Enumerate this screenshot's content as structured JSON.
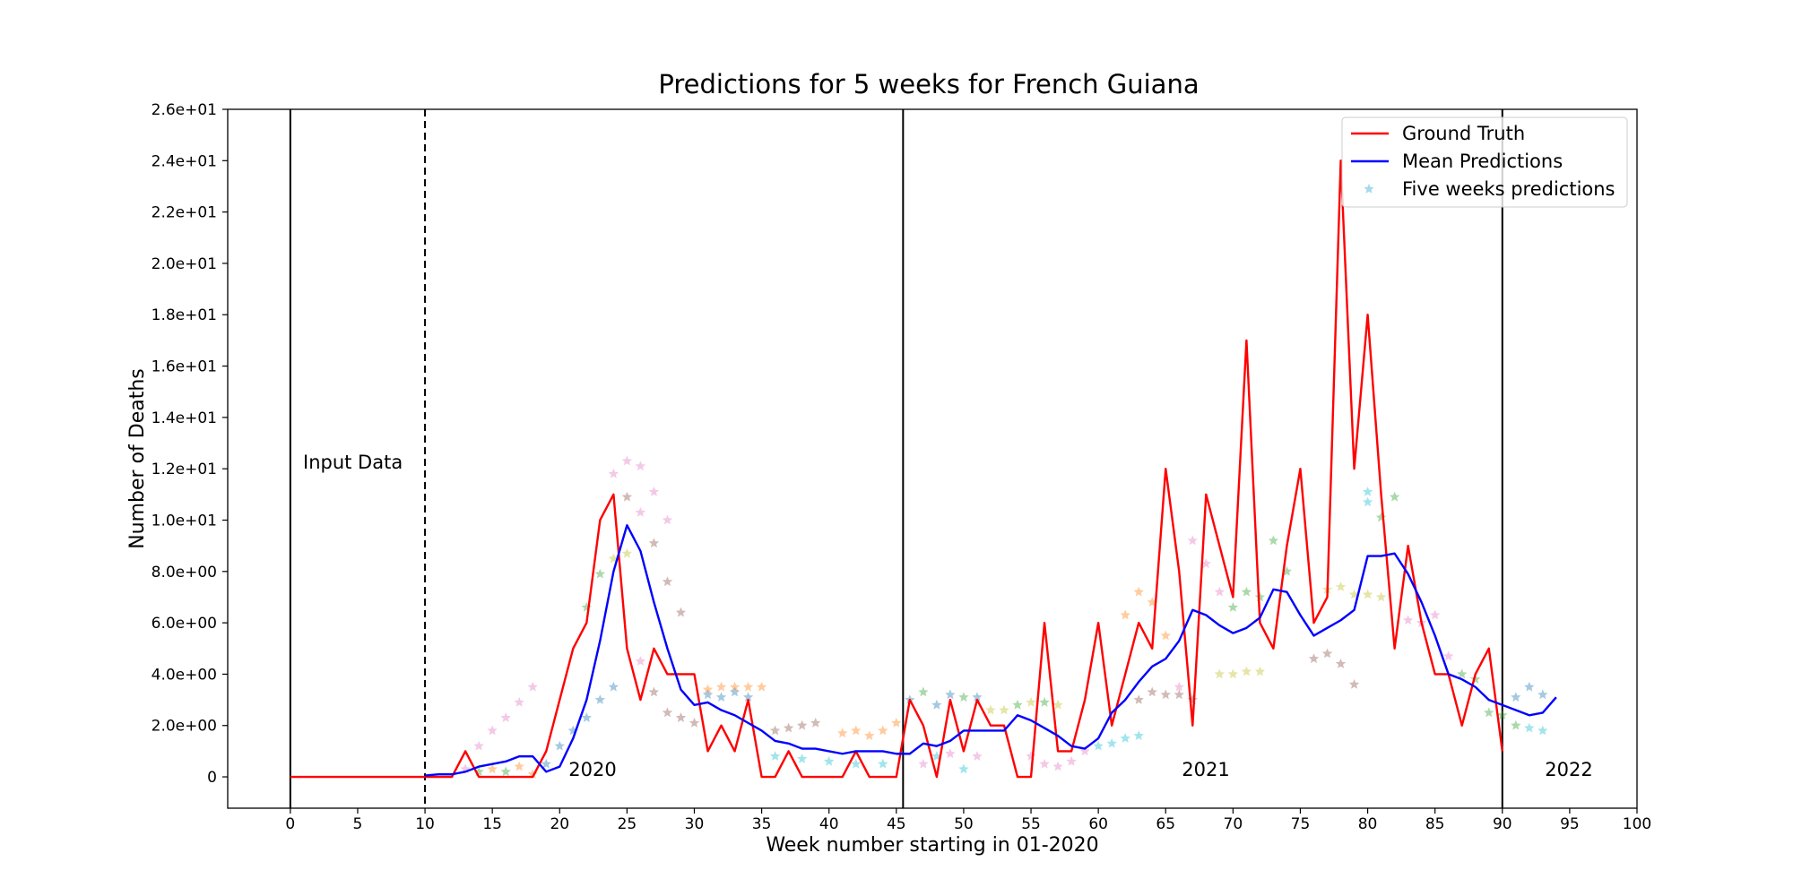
{
  "chart_data": {
    "type": "line",
    "title": "Predictions for 5 weeks for French Guiana",
    "xlabel": "Week number starting in 01-2020",
    "ylabel": "Number of Deaths",
    "xlim": [
      -4.65,
      100
    ],
    "ylim": [
      -1.22,
      26
    ],
    "xticks": [
      0,
      5,
      10,
      15,
      20,
      25,
      30,
      35,
      40,
      45,
      50,
      55,
      60,
      65,
      70,
      75,
      80,
      85,
      90,
      95,
      100
    ],
    "yticks": [
      0,
      {
        "value": 2,
        "label": "2.0e+00"
      },
      {
        "value": 4,
        "label": "4.0e+00"
      },
      {
        "value": 6,
        "label": "6.0e+00"
      },
      {
        "value": 8,
        "label": "8.0e+00"
      },
      {
        "value": 10,
        "label": "1.0e+01"
      },
      {
        "value": 12,
        "label": "1.2e+01"
      },
      {
        "value": 14,
        "label": "1.4e+01"
      },
      {
        "value": 16,
        "label": "1.6e+01"
      },
      {
        "value": 18,
        "label": "1.8e+01"
      },
      {
        "value": 20,
        "label": "2.0e+01"
      },
      {
        "value": 22,
        "label": "2.2e+01"
      },
      {
        "value": 24,
        "label": "2.4e+01"
      },
      {
        "value": 26,
        "label": "2.6e+01"
      }
    ],
    "grid": false,
    "legend": "upper right",
    "vlines": [
      {
        "x": 0,
        "style": "solid"
      },
      {
        "x": 10,
        "style": "dashed"
      },
      {
        "x": 45.5,
        "style": "solid"
      },
      {
        "x": 90,
        "style": "solid"
      }
    ],
    "annotations": [
      "Input Data",
      "2020",
      "2021",
      "2022"
    ],
    "series": [
      {
        "name": "Ground Truth",
        "color": "#ff0000",
        "kind": "line",
        "x": [
          0,
          1,
          2,
          3,
          4,
          5,
          6,
          7,
          8,
          9,
          10,
          11,
          12,
          13,
          14,
          15,
          16,
          17,
          18,
          19,
          20,
          21,
          22,
          23,
          24,
          25,
          26,
          27,
          28,
          29,
          30,
          31,
          32,
          33,
          34,
          35,
          36,
          37,
          38,
          39,
          40,
          41,
          42,
          43,
          44,
          45,
          46,
          47,
          48,
          49,
          50,
          51,
          52,
          53,
          54,
          55,
          56,
          57,
          58,
          59,
          60,
          61,
          62,
          63,
          64,
          65,
          66,
          67,
          68,
          69,
          70,
          71,
          72,
          73,
          74,
          75,
          76,
          77,
          78,
          79,
          80,
          81,
          82,
          83,
          84,
          85,
          86,
          87,
          88,
          89,
          90
        ],
        "values": [
          0,
          0,
          0,
          0,
          0,
          0,
          0,
          0,
          0,
          0,
          0,
          0,
          0,
          1,
          0,
          0,
          0,
          0,
          0,
          1,
          3,
          5,
          6,
          10,
          11,
          5,
          3,
          5,
          4,
          4,
          4,
          1,
          2,
          1,
          3,
          0,
          0,
          1,
          0,
          0,
          0,
          0,
          1,
          0,
          0,
          0,
          3,
          2,
          0,
          3,
          1,
          3,
          2,
          2,
          0,
          0,
          6,
          1,
          1,
          3,
          6,
          2,
          4,
          6,
          5,
          12,
          8,
          2,
          11,
          9,
          7,
          17,
          6,
          5,
          9,
          12,
          6,
          7,
          24,
          12,
          18,
          11,
          5,
          9,
          6,
          4,
          4,
          2,
          4,
          5,
          1
        ]
      },
      {
        "name": "Mean Predictions",
        "color": "#0000ff",
        "kind": "line",
        "x": [
          10,
          11,
          12,
          13,
          14,
          15,
          16,
          17,
          18,
          19,
          20,
          21,
          22,
          23,
          24,
          25,
          26,
          27,
          28,
          29,
          30,
          31,
          32,
          33,
          34,
          35,
          36,
          37,
          38,
          39,
          40,
          41,
          42,
          43,
          44,
          45,
          46,
          47,
          48,
          49,
          50,
          51,
          52,
          53,
          54,
          55,
          56,
          57,
          58,
          59,
          60,
          61,
          62,
          63,
          64,
          65,
          66,
          67,
          68,
          69,
          70,
          71,
          72,
          73,
          74,
          75,
          76,
          77,
          78,
          79,
          80,
          81,
          82,
          83,
          84,
          85,
          86,
          87,
          88,
          89,
          90,
          91,
          92,
          93,
          94
        ],
        "values": [
          0.05,
          0.1,
          0.1,
          0.2,
          0.4,
          0.5,
          0.6,
          0.8,
          0.8,
          0.2,
          0.4,
          1.5,
          3,
          5.3,
          8,
          9.8,
          8.8,
          6.8,
          5,
          3.4,
          2.8,
          2.9,
          2.6,
          2.4,
          2.1,
          1.8,
          1.4,
          1.3,
          1.1,
          1.1,
          1,
          0.9,
          1,
          1,
          1,
          0.9,
          0.9,
          1.3,
          1.2,
          1.4,
          1.8,
          1.8,
          1.8,
          1.8,
          2.4,
          2.2,
          1.9,
          1.6,
          1.2,
          1.1,
          1.5,
          2.5,
          3,
          3.7,
          4.3,
          4.6,
          5.3,
          6.5,
          6.3,
          5.9,
          5.6,
          5.8,
          6.2,
          7.3,
          7.2,
          6.3,
          5.5,
          5.8,
          6.1,
          6.5,
          8.6,
          8.6,
          8.7,
          7.9,
          6.8,
          5.5,
          4,
          3.8,
          3.5,
          3,
          2.8,
          2.6,
          2.4,
          2.5,
          3.1
        ]
      },
      {
        "name": "Five weeks predictions",
        "color": "#4fb3d9",
        "kind": "scatter",
        "x": [
          13,
          14,
          15,
          16,
          17,
          18,
          14,
          15,
          16,
          17,
          18,
          19,
          20,
          21,
          22,
          23,
          24,
          22,
          23,
          24,
          25,
          24,
          25,
          26,
          27,
          28,
          29,
          25,
          26,
          27,
          28,
          26,
          27,
          28,
          29,
          30,
          31,
          32,
          33,
          34,
          35,
          31,
          32,
          33,
          34,
          36,
          37,
          38,
          39,
          36,
          38,
          40,
          42,
          44,
          41,
          42,
          43,
          44,
          45,
          46,
          47,
          48,
          49,
          50,
          51,
          47,
          48,
          49,
          50,
          51,
          52,
          53,
          54,
          55,
          56,
          57,
          55,
          56,
          57,
          58,
          59,
          60,
          61,
          62,
          63,
          62,
          63,
          64,
          65,
          63,
          64,
          65,
          66,
          67,
          66,
          67,
          68,
          69,
          69,
          70,
          71,
          72,
          70,
          71,
          72,
          73,
          74,
          76,
          77,
          78,
          79,
          77,
          78,
          79,
          80,
          81,
          80,
          80,
          81,
          82,
          83,
          84,
          85,
          86,
          87,
          88,
          89,
          90,
          91,
          92,
          93,
          91,
          92,
          93
        ],
        "values": [
          0.3,
          1.2,
          1.8,
          2.3,
          2.9,
          3.5,
          0.2,
          0.3,
          0.2,
          0.4,
          0.1,
          0.5,
          1.2,
          1.8,
          2.3,
          3,
          3.5,
          6.6,
          7.9,
          8.5,
          8.7,
          11.8,
          12.3,
          12.1,
          11.1,
          10,
          6.4,
          10.9,
          10.3,
          9.1,
          7.6,
          4.5,
          3.3,
          2.5,
          2.3,
          2.1,
          3.4,
          3.5,
          3.5,
          3.5,
          3.5,
          3.2,
          3.1,
          3.3,
          3.1,
          1.8,
          1.9,
          2,
          2.1,
          0.8,
          0.7,
          0.6,
          0.5,
          0.5,
          1.7,
          1.8,
          1.6,
          1.8,
          2.1,
          3,
          3.3,
          2.8,
          3.2,
          3.1,
          3.1,
          0.5,
          0.8,
          0.9,
          0.3,
          0.8,
          2.6,
          2.6,
          2.8,
          2.9,
          2.9,
          2.8,
          0.8,
          0.5,
          0.4,
          0.6,
          1,
          1.2,
          1.3,
          1.5,
          1.6,
          6.3,
          7.2,
          6.8,
          5.5,
          3,
          3.3,
          3.2,
          3.2,
          3,
          3.5,
          9.2,
          8.3,
          7.2,
          4,
          4,
          4.1,
          4.1,
          6.6,
          7.2,
          7,
          9.2,
          8,
          4.6,
          4.8,
          4.4,
          3.6,
          7.3,
          7.4,
          7.1,
          7.1,
          7,
          11.1,
          10.7,
          10.1,
          10.9,
          6.1,
          6,
          6.3,
          4.7,
          4,
          3.8,
          2.5,
          2.4,
          2,
          1.9,
          1.8,
          3.1,
          3.5,
          3.2
        ],
        "point_colors": [
          "#e377c2",
          "#e377c2",
          "#e377c2",
          "#e377c2",
          "#e377c2",
          "#e377c2",
          "#2ca02c",
          "#ff7f0e",
          "#2ca02c",
          "#ff7f0e",
          "#ff7f0e",
          "#1f77b4",
          "#1f77b4",
          "#1f77b4",
          "#1f77b4",
          "#1f77b4",
          "#1f77b4",
          "#2ca02c",
          "#2ca02c",
          "#bcbd22",
          "#bcbd22",
          "#e377c2",
          "#e377c2",
          "#e377c2",
          "#e377c2",
          "#e377c2",
          "#8c564b",
          "#8c564b",
          "#e377c2",
          "#8c564b",
          "#8c564b",
          "#e377c2",
          "#8c564b",
          "#8c564b",
          "#8c564b",
          "#8c564b",
          "#ff7f0e",
          "#ff7f0e",
          "#ff7f0e",
          "#ff7f0e",
          "#ff7f0e",
          "#1f77b4",
          "#1f77b4",
          "#1f77b4",
          "#1f77b4",
          "#8c564b",
          "#8c564b",
          "#8c564b",
          "#8c564b",
          "#17becf",
          "#17becf",
          "#17becf",
          "#17becf",
          "#17becf",
          "#ff7f0e",
          "#ff7f0e",
          "#ff7f0e",
          "#ff7f0e",
          "#ff7f0e",
          "#1f77b4",
          "#2ca02c",
          "#1f77b4",
          "#1f77b4",
          "#2ca02c",
          "#1f77b4",
          "#e377c2",
          "#17becf",
          "#e377c2",
          "#17becf",
          "#e377c2",
          "#bcbd22",
          "#bcbd22",
          "#2ca02c",
          "#bcbd22",
          "#2ca02c",
          "#bcbd22",
          "#e377c2",
          "#e377c2",
          "#e377c2",
          "#e377c2",
          "#e377c2",
          "#17becf",
          "#17becf",
          "#17becf",
          "#17becf",
          "#ff7f0e",
          "#ff7f0e",
          "#ff7f0e",
          "#ff7f0e",
          "#8c564b",
          "#8c564b",
          "#8c564b",
          "#8c564b",
          "#8c564b",
          "#e377c2",
          "#e377c2",
          "#e377c2",
          "#e377c2",
          "#bcbd22",
          "#bcbd22",
          "#bcbd22",
          "#bcbd22",
          "#2ca02c",
          "#2ca02c",
          "#2ca02c",
          "#2ca02c",
          "#2ca02c",
          "#8c564b",
          "#8c564b",
          "#8c564b",
          "#8c564b",
          "#bcbd22",
          "#bcbd22",
          "#bcbd22",
          "#bcbd22",
          "#bcbd22",
          "#17becf",
          "#17becf",
          "#2ca02c",
          "#2ca02c",
          "#e377c2",
          "#e377c2",
          "#e377c2",
          "#e377c2",
          "#2ca02c",
          "#2ca02c",
          "#2ca02c",
          "#2ca02c",
          "#2ca02c",
          "#17becf",
          "#17becf",
          "#1f77b4",
          "#1f77b4",
          "#1f77b4"
        ]
      }
    ]
  }
}
